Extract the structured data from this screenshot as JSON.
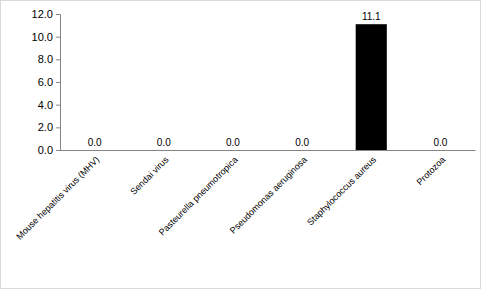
{
  "chart_data": {
    "type": "bar",
    "categories": [
      "Mouse hepatitis virus (MHV)",
      "Sendai virus",
      "Pasteurella pneumotropica",
      "Pseudomonas aeruginosa",
      "Staphylococcus aureus",
      "Protozoa"
    ],
    "values": [
      0,
      0,
      0,
      0,
      11.1,
      0
    ],
    "value_labels": [
      "0.0",
      "0.0",
      "0.0",
      "0.0",
      "11.1",
      "0.0"
    ],
    "data_labels": true,
    "color": "#000000",
    "ylim": [
      0,
      12
    ],
    "yticks": [
      {
        "value": 0,
        "label": "0.0"
      },
      {
        "value": 2,
        "label": "2.0"
      },
      {
        "value": 4,
        "label": "4.0"
      },
      {
        "value": 6,
        "label": "6.0"
      },
      {
        "value": 8,
        "label": "8.0"
      },
      {
        "value": 10,
        "label": "10.0"
      },
      {
        "value": 12,
        "label": "12.0"
      }
    ],
    "grid": false
  }
}
